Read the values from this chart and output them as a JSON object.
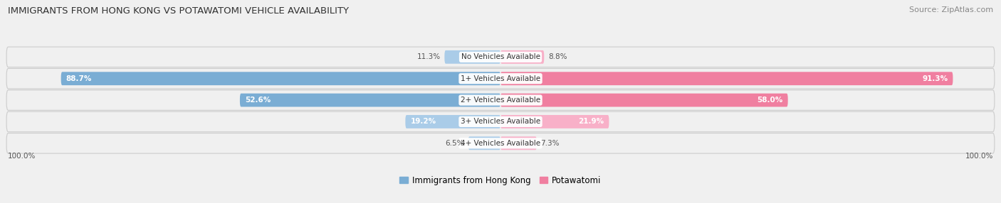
{
  "title": "IMMIGRANTS FROM HONG KONG VS POTAWATOMI VEHICLE AVAILABILITY",
  "source": "Source: ZipAtlas.com",
  "categories": [
    "No Vehicles Available",
    "1+ Vehicles Available",
    "2+ Vehicles Available",
    "3+ Vehicles Available",
    "4+ Vehicles Available"
  ],
  "hk_values": [
    11.3,
    88.7,
    52.6,
    19.2,
    6.5
  ],
  "pot_values": [
    8.8,
    91.3,
    58.0,
    21.9,
    7.3
  ],
  "hk_color": "#7aadd4",
  "pot_color": "#f07fa0",
  "hk_light_color": "#aacce8",
  "pot_light_color": "#f8b0c8",
  "hk_label": "Immigrants from Hong Kong",
  "pot_label": "Potawatomi",
  "fig_bg": "#f0f0f0",
  "row_bg": "#e4e4e4",
  "row_alt_bg": "#ebebeb",
  "label_outside_color": "#555555",
  "label_inside_color": "#ffffff",
  "center_label_color": "#333333"
}
